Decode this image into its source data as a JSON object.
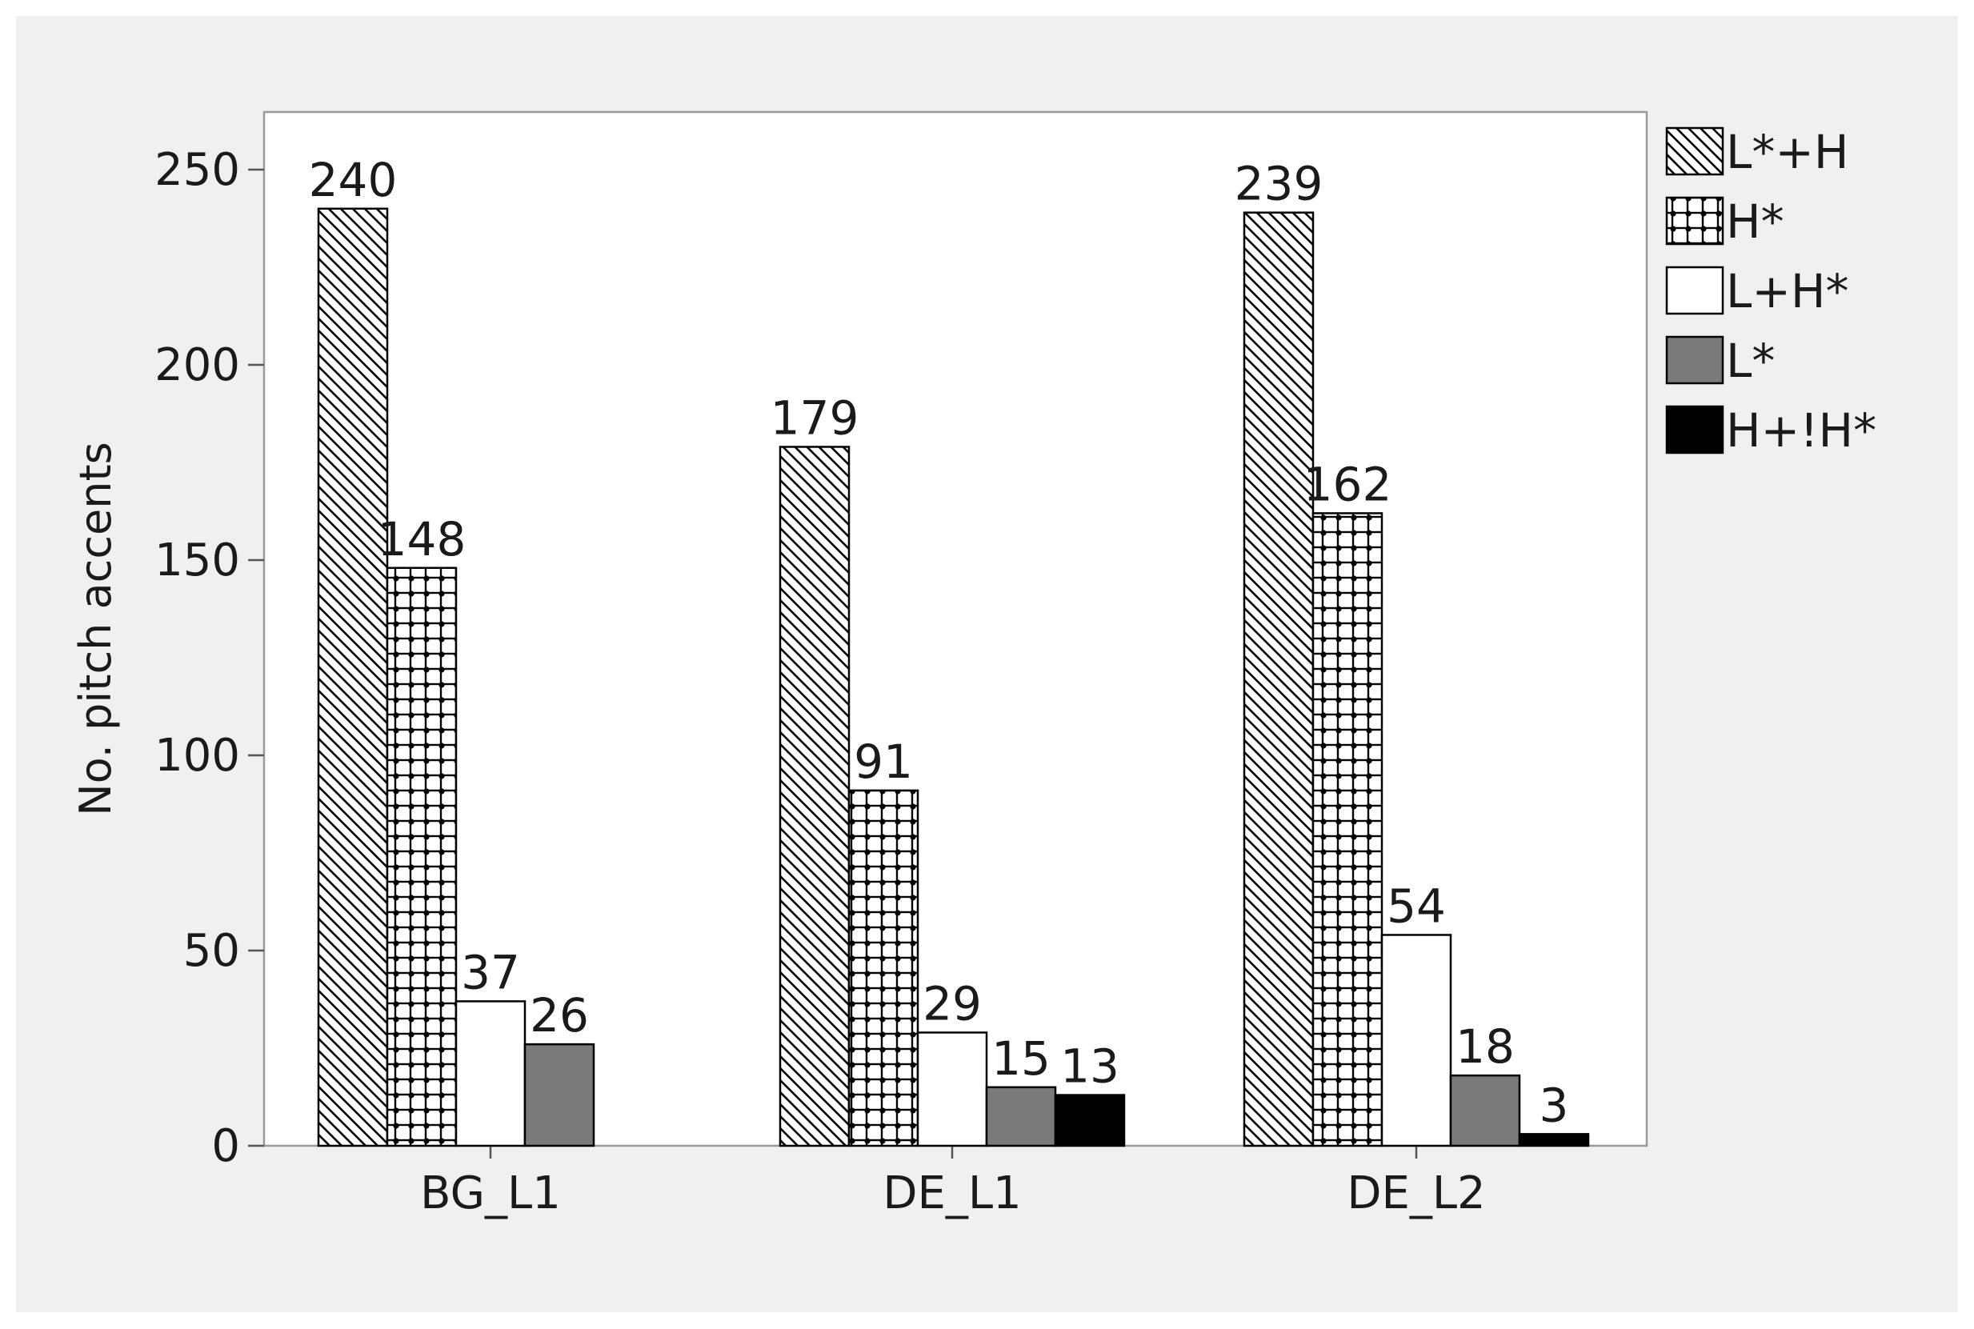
{
  "chart_data": {
    "type": "bar",
    "title": "",
    "xlabel": "",
    "ylabel": "No. pitch accents",
    "categories": [
      "BG_L1",
      "DE_L1",
      "DE_L2"
    ],
    "ylim": [
      0,
      260
    ],
    "yticks": [
      0,
      50,
      100,
      150,
      200,
      250
    ],
    "grid": false,
    "legend_position": "right",
    "series": [
      {
        "name": "L*+H",
        "pattern": "diagonal-hatch",
        "color": "#000000",
        "values": [
          240,
          179,
          239
        ]
      },
      {
        "name": "H*",
        "pattern": "dotted-grid",
        "color": "#000000",
        "values": [
          148,
          91,
          162
        ]
      },
      {
        "name": "L+H*",
        "pattern": "solid",
        "color": "#ffffff",
        "values": [
          37,
          29,
          54
        ]
      },
      {
        "name": "L*",
        "pattern": "solid",
        "color": "#7a7a7a",
        "values": [
          26,
          15,
          18
        ]
      },
      {
        "name": "H+!H*",
        "pattern": "solid",
        "color": "#000000",
        "values": [
          null,
          13,
          3
        ]
      }
    ],
    "data_labels": [
      [
        "240",
        "179",
        "239"
      ],
      [
        "148",
        "91",
        "162"
      ],
      [
        "37",
        "29",
        "54"
      ],
      [
        "26",
        "15",
        "18"
      ],
      [
        "",
        "13",
        "3"
      ]
    ]
  }
}
